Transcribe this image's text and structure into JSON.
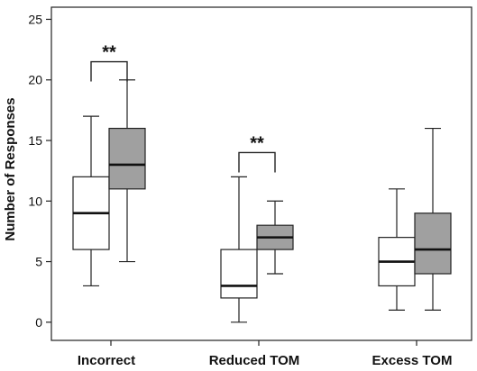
{
  "chart_data": {
    "type": "boxplot",
    "ylabel": "Number of Responses",
    "xlabel": "",
    "ylim": [
      -1.5,
      26
    ],
    "yticks": [
      0,
      5,
      10,
      15,
      20,
      25
    ],
    "categories": [
      "Incorrect",
      "Reduced TOM",
      "Excess TOM"
    ],
    "series": [
      {
        "fill": "#ffffff",
        "boxes": [
          {
            "category": "Incorrect",
            "min": 3,
            "q1": 6,
            "median": 9,
            "q3": 12,
            "max": 17
          },
          {
            "category": "Reduced TOM",
            "min": 0,
            "q1": 2,
            "median": 3,
            "q3": 6,
            "max": 12
          },
          {
            "category": "Excess TOM",
            "min": 1,
            "q1": 3,
            "median": 5,
            "q3": 7,
            "max": 11
          }
        ]
      },
      {
        "fill": "#a0a0a0",
        "boxes": [
          {
            "category": "Incorrect",
            "min": 5,
            "q1": 11,
            "median": 13,
            "q3": 16,
            "max": 20
          },
          {
            "category": "Reduced TOM",
            "min": 4,
            "q1": 6,
            "median": 7,
            "q3": 8,
            "max": 10
          },
          {
            "category": "Excess TOM",
            "min": 1,
            "q1": 4,
            "median": 6,
            "q3": 9,
            "max": 16
          }
        ]
      }
    ],
    "annotations": [
      {
        "category": "Incorrect",
        "text": "**",
        "bracket_y": 21.5
      },
      {
        "category": "Reduced TOM",
        "text": "**",
        "bracket_y": 14
      }
    ],
    "grid": false,
    "legend": "none"
  }
}
